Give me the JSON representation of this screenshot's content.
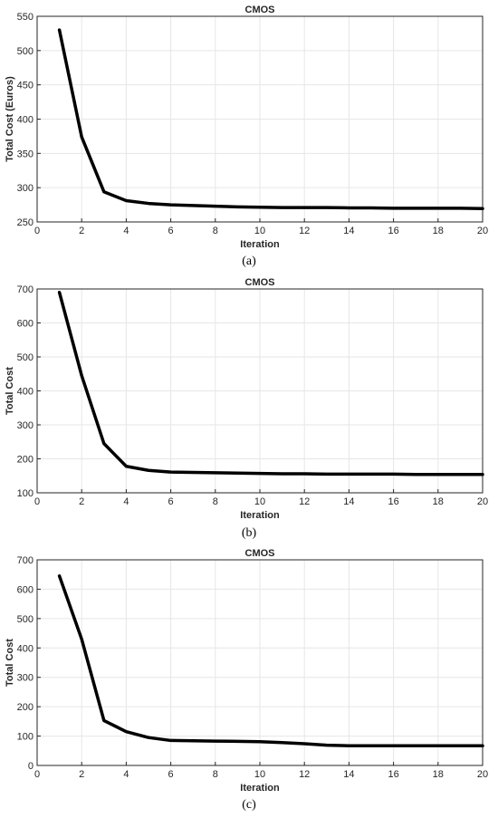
{
  "chart_data": [
    {
      "type": "line",
      "title": "CMOS",
      "xlabel": "Iteration",
      "ylabel": "Total Cost (Euros)",
      "caption": "(a)",
      "xlim": [
        0,
        20
      ],
      "ylim": [
        250,
        550
      ],
      "xticks": [
        0,
        2,
        4,
        6,
        8,
        10,
        12,
        14,
        16,
        18,
        20
      ],
      "yticks": [
        250,
        300,
        350,
        400,
        450,
        500,
        550
      ],
      "grid": true,
      "series": [
        {
          "x": [
            1,
            2,
            3,
            4,
            5,
            6,
            7,
            8,
            9,
            10,
            11,
            12,
            13,
            14,
            15,
            16,
            17,
            18,
            19,
            20
          ],
          "values": [
            530,
            374,
            294,
            281,
            277,
            275,
            274,
            273,
            272,
            271.5,
            271,
            271,
            271,
            270.5,
            270.5,
            270,
            270,
            270,
            270,
            269.5
          ]
        }
      ]
    },
    {
      "type": "line",
      "title": "CMOS",
      "xlabel": "Iteration",
      "ylabel": "Total Cost",
      "caption": "(b)",
      "xlim": [
        0,
        20
      ],
      "ylim": [
        100,
        700
      ],
      "xticks": [
        0,
        2,
        4,
        6,
        8,
        10,
        12,
        14,
        16,
        18,
        20
      ],
      "yticks": [
        100,
        200,
        300,
        400,
        500,
        600,
        700
      ],
      "grid": true,
      "series": [
        {
          "x": [
            1,
            2,
            3,
            4,
            5,
            6,
            7,
            8,
            9,
            10,
            11,
            12,
            13,
            14,
            15,
            16,
            17,
            18,
            19,
            20
          ],
          "values": [
            690,
            445,
            245,
            178,
            166,
            161,
            160,
            159,
            158,
            157,
            156,
            156,
            155,
            155,
            155,
            155,
            154,
            154,
            154,
            154
          ]
        }
      ]
    },
    {
      "type": "line",
      "title": "CMOS",
      "xlabel": "Iteration",
      "ylabel": "Total Cost",
      "caption": "(c)",
      "xlim": [
        0,
        20
      ],
      "ylim": [
        0,
        700
      ],
      "xticks": [
        0,
        2,
        4,
        6,
        8,
        10,
        12,
        14,
        16,
        18,
        20
      ],
      "yticks": [
        0,
        100,
        200,
        300,
        400,
        500,
        600,
        700
      ],
      "grid": true,
      "series": [
        {
          "x": [
            1,
            2,
            3,
            4,
            5,
            6,
            7,
            8,
            9,
            10,
            11,
            12,
            13,
            14,
            15,
            16,
            17,
            18,
            19,
            20
          ],
          "values": [
            645,
            430,
            153,
            115,
            95,
            85,
            84,
            83,
            82,
            81,
            78,
            74,
            69,
            67,
            67,
            67,
            67,
            67,
            67,
            67
          ]
        }
      ]
    }
  ]
}
